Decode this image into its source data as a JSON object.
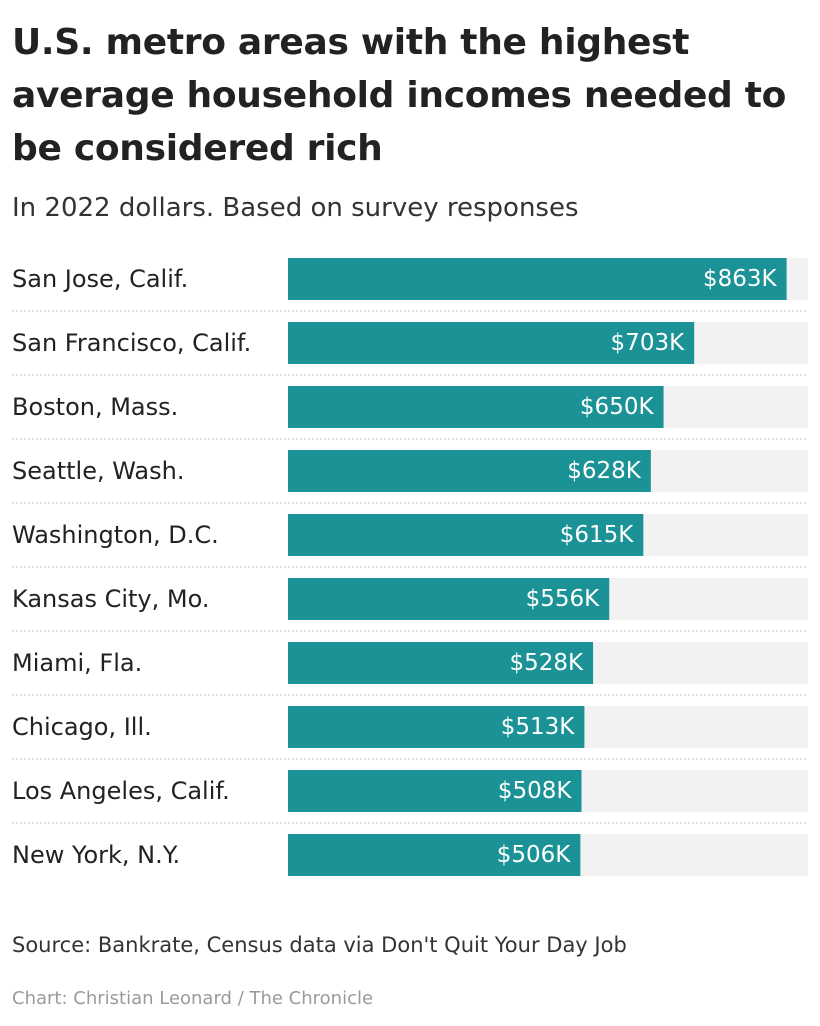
{
  "title": "U.S. metro areas with the highest average household incomes needed to be considered rich",
  "subtitle": "In 2022 dollars. Based on survey responses",
  "source": "Source: Bankrate, Census data via Don't Quit Your Day Job",
  "credit": "Chart: Christian Leonard / The Chronicle",
  "colors": {
    "bar": "#1b9396",
    "track": "#f2f2f2",
    "divider": "#cccccc",
    "value_label": "#ffffff",
    "category_label": "#222222"
  },
  "chart_data": {
    "type": "bar",
    "orientation": "horizontal",
    "unit": "thousand dollars",
    "categories": [
      "San Jose, Calif.",
      "San Francisco, Calif.",
      "Boston, Mass.",
      "Seattle, Wash.",
      "Washington, D.C.",
      "Kansas City, Mo.",
      "Miami, Fla.",
      "Chicago, Ill.",
      "Los Angeles, Calif.",
      "New York, N.Y."
    ],
    "values": [
      863,
      703,
      650,
      628,
      615,
      556,
      528,
      513,
      508,
      506
    ],
    "value_labels": [
      "$863K",
      "$703K",
      "$650K",
      "$628K",
      "$615K",
      "$556K",
      "$528K",
      "$513K",
      "$508K",
      "$506K"
    ],
    "xlim": [
      0,
      900
    ],
    "grid": false,
    "legend": "none"
  }
}
